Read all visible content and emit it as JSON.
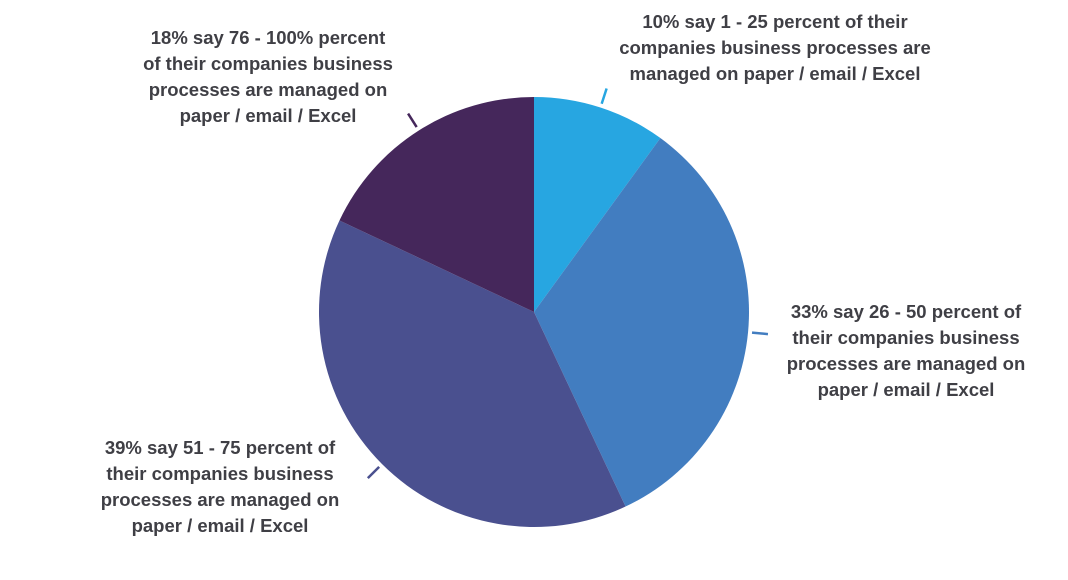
{
  "chart_data": {
    "type": "pie",
    "title": "",
    "start_angle": "12 o'clock",
    "direction": "clockwise",
    "slices": [
      {
        "value": 10,
        "color": "#27a6e1",
        "label_lines": [
          "10% say 1 - 25 percent of their",
          "companies business processes are",
          "managed on paper / email / Excel"
        ]
      },
      {
        "value": 33,
        "color": "#427dc0",
        "label_lines": [
          "33% say 26 - 50 percent of",
          "their companies business",
          "processes are managed on",
          "paper / email / Excel"
        ]
      },
      {
        "value": 39,
        "color": "#4a508f",
        "label_lines": [
          "39% say 51 - 75 percent of",
          "their companies business",
          "processes are managed on",
          "paper / email / Excel"
        ]
      },
      {
        "value": 18,
        "color": "#45275b",
        "label_lines": [
          "18% say 76 - 100% percent",
          "of their companies business",
          "processes are managed on",
          "paper / email / Excel"
        ]
      }
    ]
  }
}
